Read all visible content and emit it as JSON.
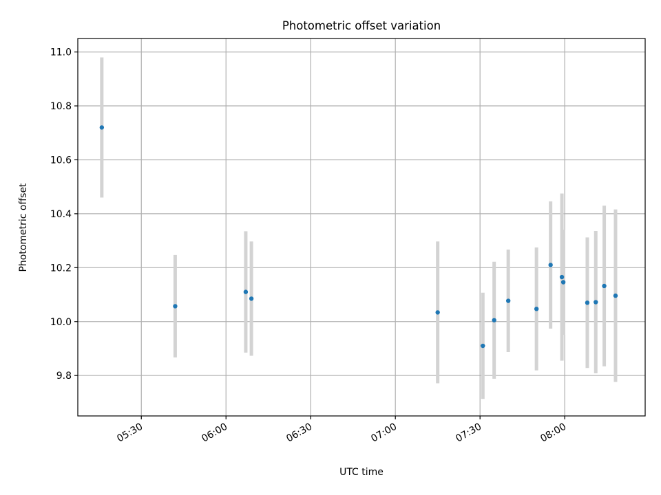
{
  "chart_data": {
    "type": "scatter",
    "title": "Photometric offset variation",
    "xlabel": "UTC time",
    "ylabel": "Photometric offset",
    "x_type": "time",
    "xlim": [
      "05:07:30",
      "08:28:30"
    ],
    "ylim": [
      9.65,
      11.05
    ],
    "x_ticks": [
      "05:30",
      "06:00",
      "06:30",
      "07:00",
      "07:30",
      "08:00"
    ],
    "y_ticks": [
      "9.8",
      "10.0",
      "10.2",
      "10.4",
      "10.6",
      "10.8",
      "11.0"
    ],
    "grid": true,
    "colors": {
      "points": "#1f77b4",
      "errorbars": "#d3d3d3",
      "grid": "#b0b0b0"
    },
    "points": [
      {
        "x": "05:16:00",
        "y": 10.72,
        "err": 0.26
      },
      {
        "x": "05:42:00",
        "y": 10.057,
        "err": 0.19
      },
      {
        "x": "06:07:00",
        "y": 10.11,
        "err": 0.225
      },
      {
        "x": "06:09:00",
        "y": 10.085,
        "err": 0.212
      },
      {
        "x": "07:15:00",
        "y": 10.034,
        "err": 0.263
      },
      {
        "x": "07:31:00",
        "y": 9.91,
        "err": 0.197
      },
      {
        "x": "07:35:00",
        "y": 10.005,
        "err": 0.217
      },
      {
        "x": "07:40:00",
        "y": 10.077,
        "err": 0.19
      },
      {
        "x": "07:50:00",
        "y": 10.047,
        "err": 0.228
      },
      {
        "x": "07:55:00",
        "y": 10.21,
        "err": 0.236
      },
      {
        "x": "07:59:00",
        "y": 10.165,
        "err": 0.31
      },
      {
        "x": "07:59:30",
        "y": 10.146,
        "err": 0.195
      },
      {
        "x": "08:08:00",
        "y": 10.07,
        "err": 0.242
      },
      {
        "x": "08:11:00",
        "y": 10.072,
        "err": 0.264
      },
      {
        "x": "08:14:00",
        "y": 10.132,
        "err": 0.298
      },
      {
        "x": "08:18:00",
        "y": 10.096,
        "err": 0.32
      }
    ]
  }
}
